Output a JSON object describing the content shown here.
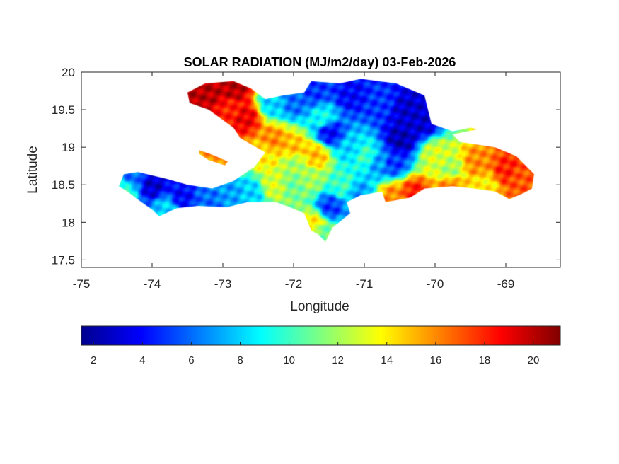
{
  "chart_data": {
    "type": "heatmap",
    "title": "SOLAR RADIATION (MJ/m2/day) 03-Feb-2026",
    "xlabel": "Longitude",
    "ylabel": "Latitude",
    "xlim": [
      -75,
      -68.23
    ],
    "ylim": [
      17.4,
      20
    ],
    "xticks": [
      -75,
      -74,
      -73,
      -72,
      -71,
      -70,
      -69
    ],
    "yticks": [
      17.5,
      18,
      18.5,
      19,
      19.5,
      20
    ],
    "xtick_labels": [
      "-75",
      "-74",
      "-73",
      "-72",
      "-71",
      "-70",
      "-69"
    ],
    "ytick_labels": [
      "17.5",
      "18",
      "18.5",
      "19",
      "19.5",
      "20"
    ],
    "colormap": "jet",
    "clim": [
      1.5,
      21.1
    ],
    "colorbar": {
      "location": "bottom",
      "ticks": [
        2,
        4,
        6,
        8,
        10,
        12,
        14,
        16,
        18,
        20
      ],
      "tick_labels": [
        "2",
        "4",
        "6",
        "8",
        "10",
        "12",
        "14",
        "16",
        "18",
        "20"
      ]
    },
    "land_outlines": [
      [
        [
          -73.5,
          19.73
        ],
        [
          -73.25,
          19.85
        ],
        [
          -72.85,
          19.88
        ],
        [
          -72.6,
          19.78
        ],
        [
          -72.4,
          19.64
        ],
        [
          -72.15,
          19.69
        ],
        [
          -71.85,
          19.73
        ],
        [
          -71.75,
          19.88
        ],
        [
          -71.35,
          19.85
        ],
        [
          -71.05,
          19.91
        ],
        [
          -70.55,
          19.85
        ],
        [
          -70.15,
          19.69
        ],
        [
          -70.05,
          19.31
        ],
        [
          -69.75,
          19.21
        ],
        [
          -69.5,
          19.26
        ],
        [
          -69.4,
          19.24
        ],
        [
          -69.75,
          19.17
        ],
        [
          -69.65,
          19.07
        ],
        [
          -69.15,
          19.0
        ],
        [
          -68.85,
          18.88
        ],
        [
          -68.6,
          18.64
        ],
        [
          -68.63,
          18.45
        ],
        [
          -68.75,
          18.39
        ],
        [
          -68.95,
          18.31
        ],
        [
          -69.15,
          18.41
        ],
        [
          -69.45,
          18.45
        ],
        [
          -69.75,
          18.48
        ],
        [
          -70.15,
          18.45
        ],
        [
          -70.35,
          18.33
        ],
        [
          -70.7,
          18.27
        ],
        [
          -70.75,
          18.41
        ],
        [
          -71.05,
          18.36
        ],
        [
          -71.25,
          18.27
        ],
        [
          -71.2,
          18.12
        ],
        [
          -71.45,
          17.93
        ],
        [
          -71.55,
          17.74
        ],
        [
          -71.65,
          17.84
        ],
        [
          -71.75,
          17.89
        ],
        [
          -71.85,
          18.12
        ],
        [
          -72.05,
          18.2
        ],
        [
          -72.25,
          18.27
        ],
        [
          -72.65,
          18.27
        ],
        [
          -72.95,
          18.2
        ],
        [
          -73.35,
          18.22
        ],
        [
          -73.65,
          18.19
        ],
        [
          -73.9,
          18.08
        ],
        [
          -74.0,
          18.17
        ],
        [
          -74.15,
          18.27
        ],
        [
          -74.35,
          18.41
        ],
        [
          -74.47,
          18.48
        ],
        [
          -74.4,
          18.64
        ],
        [
          -74.2,
          18.67
        ],
        [
          -73.8,
          18.58
        ],
        [
          -73.5,
          18.5
        ],
        [
          -73.15,
          18.45
        ],
        [
          -72.85,
          18.55
        ],
        [
          -72.55,
          18.74
        ],
        [
          -72.4,
          18.93
        ],
        [
          -72.75,
          19.12
        ],
        [
          -72.85,
          19.26
        ],
        [
          -73.2,
          19.5
        ],
        [
          -73.47,
          19.59
        ]
      ],
      [
        [
          -73.33,
          18.96
        ],
        [
          -73.15,
          18.9
        ],
        [
          -72.93,
          18.81
        ],
        [
          -72.97,
          18.76
        ],
        [
          -73.2,
          18.83
        ],
        [
          -73.33,
          18.91
        ]
      ]
    ],
    "samples": [
      [
        -73.2,
        19.75,
        20
      ],
      [
        -72.85,
        19.8,
        20
      ],
      [
        -72.7,
        19.4,
        19
      ],
      [
        -72.9,
        19.5,
        18
      ],
      [
        -73.4,
        19.65,
        20
      ],
      [
        -72.3,
        19.6,
        8
      ],
      [
        -72.0,
        19.6,
        6
      ],
      [
        -71.7,
        19.75,
        5
      ],
      [
        -71.2,
        19.7,
        4
      ],
      [
        -70.8,
        19.6,
        5
      ],
      [
        -70.4,
        19.5,
        3
      ],
      [
        -70.5,
        19.1,
        2.5
      ],
      [
        -70.2,
        19.35,
        3
      ],
      [
        -71.6,
        19.4,
        9
      ],
      [
        -71.5,
        19.2,
        4
      ],
      [
        -72.3,
        19.1,
        16
      ],
      [
        -72.0,
        19.0,
        15
      ],
      [
        -72.4,
        18.9,
        14
      ],
      [
        -72.0,
        18.8,
        12
      ],
      [
        -71.7,
        18.9,
        15
      ],
      [
        -71.2,
        19.0,
        8
      ],
      [
        -71.0,
        18.9,
        10
      ],
      [
        -70.8,
        18.8,
        7
      ],
      [
        -70.6,
        18.8,
        5
      ],
      [
        -70.0,
        18.9,
        13
      ],
      [
        -69.8,
        18.7,
        12
      ],
      [
        -69.4,
        18.8,
        16
      ],
      [
        -69.0,
        18.7,
        18
      ],
      [
        -68.8,
        18.6,
        17
      ],
      [
        -69.3,
        18.5,
        14
      ],
      [
        -69.8,
        18.5,
        16
      ],
      [
        -70.3,
        18.4,
        18
      ],
      [
        -70.6,
        18.35,
        16
      ],
      [
        -71.3,
        18.5,
        10
      ],
      [
        -71.5,
        18.2,
        5
      ],
      [
        -71.6,
        17.9,
        11
      ],
      [
        -71.7,
        18.0,
        14
      ],
      [
        -71.1,
        18.4,
        7
      ],
      [
        -72.3,
        18.5,
        13
      ],
      [
        -72.6,
        18.4,
        8
      ],
      [
        -72.9,
        18.4,
        7
      ],
      [
        -73.2,
        18.3,
        6
      ],
      [
        -73.6,
        18.35,
        4
      ],
      [
        -74.0,
        18.5,
        3
      ],
      [
        -74.4,
        18.45,
        10
      ],
      [
        -74.3,
        18.6,
        6
      ],
      [
        -73.8,
        18.2,
        8
      ],
      [
        -72.0,
        18.5,
        11
      ],
      [
        -71.8,
        18.6,
        12
      ],
      [
        -73.1,
        18.87,
        16
      ]
    ]
  }
}
